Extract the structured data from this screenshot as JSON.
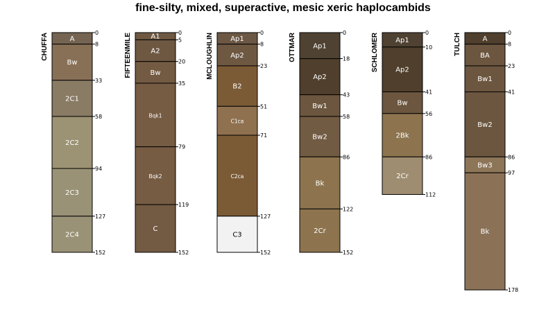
{
  "chart_data": {
    "type": "soil-profile-sketch",
    "title": "fine-silty, mixed, superactive, mesic xeric haplocambids",
    "depth_units": "cm",
    "depth_range": [
      0,
      178
    ],
    "profiles": [
      {
        "name": "CHUFFA",
        "horizons": [
          {
            "name": "A",
            "top": 0,
            "bottom": 8,
            "color": "#756452"
          },
          {
            "name": "Bw",
            "top": 8,
            "bottom": 33,
            "color": "#887057"
          },
          {
            "name": "2C1",
            "top": 33,
            "bottom": 58,
            "color": "#8a7b64"
          },
          {
            "name": "2C2",
            "top": 58,
            "bottom": 94,
            "color": "#9c9274"
          },
          {
            "name": "2C3",
            "top": 94,
            "bottom": 127,
            "color": "#9a9276"
          },
          {
            "name": "2C4",
            "top": 127,
            "bottom": 152,
            "color": "#9a9276"
          }
        ],
        "depth_labels": [
          "0",
          "8",
          "33",
          "58",
          "94",
          "127",
          "152"
        ]
      },
      {
        "name": "FIFTEENMILE",
        "horizons": [
          {
            "name": "A1",
            "top": 0,
            "bottom": 5,
            "color": "#6e5842"
          },
          {
            "name": "A2",
            "top": 5,
            "bottom": 20,
            "color": "#6e5842"
          },
          {
            "name": "Bw",
            "top": 20,
            "bottom": 35,
            "color": "#735a42"
          },
          {
            "name": "Bqk1",
            "top": 35,
            "bottom": 79,
            "color": "#765c43"
          },
          {
            "name": "Bqk2",
            "top": 79,
            "bottom": 119,
            "color": "#765c43"
          },
          {
            "name": "C",
            "top": 119,
            "bottom": 152,
            "color": "#735a42"
          }
        ],
        "depth_labels": [
          "0",
          "5",
          "20",
          "35",
          "79",
          "119",
          "152"
        ]
      },
      {
        "name": "MCLOUGHLIN",
        "horizons": [
          {
            "name": "Ap1",
            "top": 0,
            "bottom": 8,
            "color": "#6c5744"
          },
          {
            "name": "Ap2",
            "top": 8,
            "bottom": 23,
            "color": "#6e5842"
          },
          {
            "name": "B2",
            "top": 23,
            "bottom": 51,
            "color": "#7b5b36"
          },
          {
            "name": "C1ca",
            "top": 51,
            "bottom": 71,
            "color": "#8f7150"
          },
          {
            "name": "C2ca",
            "top": 71,
            "bottom": 127,
            "color": "#7b5b36"
          },
          {
            "name": "C3",
            "top": 127,
            "bottom": 152,
            "color": "#f2f2f2"
          }
        ],
        "depth_labels": [
          "0",
          "8",
          "23",
          "51",
          "71",
          "127",
          "152"
        ]
      },
      {
        "name": "OTTMAR",
        "horizons": [
          {
            "name": "Ap1",
            "top": 0,
            "bottom": 18,
            "color": "#4f4232"
          },
          {
            "name": "Ap2",
            "top": 18,
            "bottom": 43,
            "color": "#4f3f2c"
          },
          {
            "name": "Bw1",
            "top": 43,
            "bottom": 58,
            "color": "#6c563f"
          },
          {
            "name": "Bw2",
            "top": 58,
            "bottom": 86,
            "color": "#725b43"
          },
          {
            "name": "Bk",
            "top": 86,
            "bottom": 122,
            "color": "#8d744e"
          },
          {
            "name": "2Cr",
            "top": 122,
            "bottom": 152,
            "color": "#8d744e"
          }
        ],
        "depth_labels": [
          "0",
          "18",
          "43",
          "58",
          "86",
          "122",
          "152"
        ]
      },
      {
        "name": "SCHLOMER",
        "horizons": [
          {
            "name": "Ap1",
            "top": 0,
            "bottom": 10,
            "color": "#4f4232"
          },
          {
            "name": "Ap2",
            "top": 10,
            "bottom": 41,
            "color": "#4f3f2c"
          },
          {
            "name": "Bw",
            "top": 41,
            "bottom": 56,
            "color": "#6c563f"
          },
          {
            "name": "2Bk",
            "top": 56,
            "bottom": 86,
            "color": "#8d744e"
          },
          {
            "name": "2Cr",
            "top": 86,
            "bottom": 112,
            "color": "#9e8d70"
          }
        ],
        "depth_labels": [
          "0",
          "10",
          "41",
          "56",
          "86",
          "112"
        ]
      },
      {
        "name": "TULCH",
        "horizons": [
          {
            "name": "A",
            "top": 0,
            "bottom": 8,
            "color": "#4f3f2c"
          },
          {
            "name": "BA",
            "top": 8,
            "bottom": 23,
            "color": "#6c563f"
          },
          {
            "name": "Bw1",
            "top": 23,
            "bottom": 41,
            "color": "#6c563f"
          },
          {
            "name": "Bw2",
            "top": 41,
            "bottom": 86,
            "color": "#6c563f"
          },
          {
            "name": "Bw3",
            "top": 86,
            "bottom": 97,
            "color": "#8d7558"
          },
          {
            "name": "Bk",
            "top": 97,
            "bottom": 178,
            "color": "#8b7257"
          }
        ],
        "depth_labels": [
          "0",
          "8",
          "23",
          "41",
          "86",
          "97",
          "178"
        ]
      }
    ],
    "light_label_horizons": [
      "Bqk1",
      "Bqk2",
      "C1ca",
      "C2ca"
    ]
  }
}
